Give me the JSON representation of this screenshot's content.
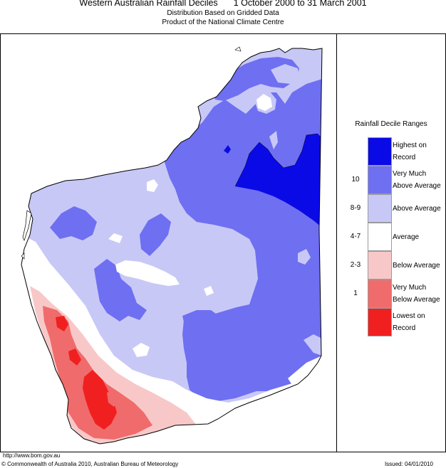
{
  "title": {
    "main": "Western Australian Rainfall Deciles",
    "period": "1 October 2000 to 31 March 2001",
    "subtitle1": "Distribution Based on Gridded Data",
    "subtitle2": "Product of the National Climate Centre"
  },
  "legend": {
    "title": "Rainfall Decile Ranges",
    "items": [
      {
        "range": "",
        "label": "Highest on\nRecord",
        "color": "#0a0ae6"
      },
      {
        "range": "10",
        "label": "Very Much\nAbove Average",
        "color": "#6f6ff2"
      },
      {
        "range": "8-9",
        "label": "Above Average",
        "color": "#c8c8f7"
      },
      {
        "range": "4-7",
        "label": "Average",
        "color": "#ffffff"
      },
      {
        "range": "2-3",
        "label": "Below Average",
        "color": "#f8c8c8"
      },
      {
        "range": "1",
        "label": "Very Much\nBelow Average",
        "color": "#f06b6b"
      },
      {
        "range": "",
        "label": "Lowest on\nRecord",
        "color": "#f02020"
      }
    ]
  },
  "footer": {
    "url": "http://www.bom.gov.au",
    "copyright": "© Commonwealth of Australia 2010, Australian Bureau of Meteorology",
    "issued": "Issued: 04/01/2010"
  }
}
